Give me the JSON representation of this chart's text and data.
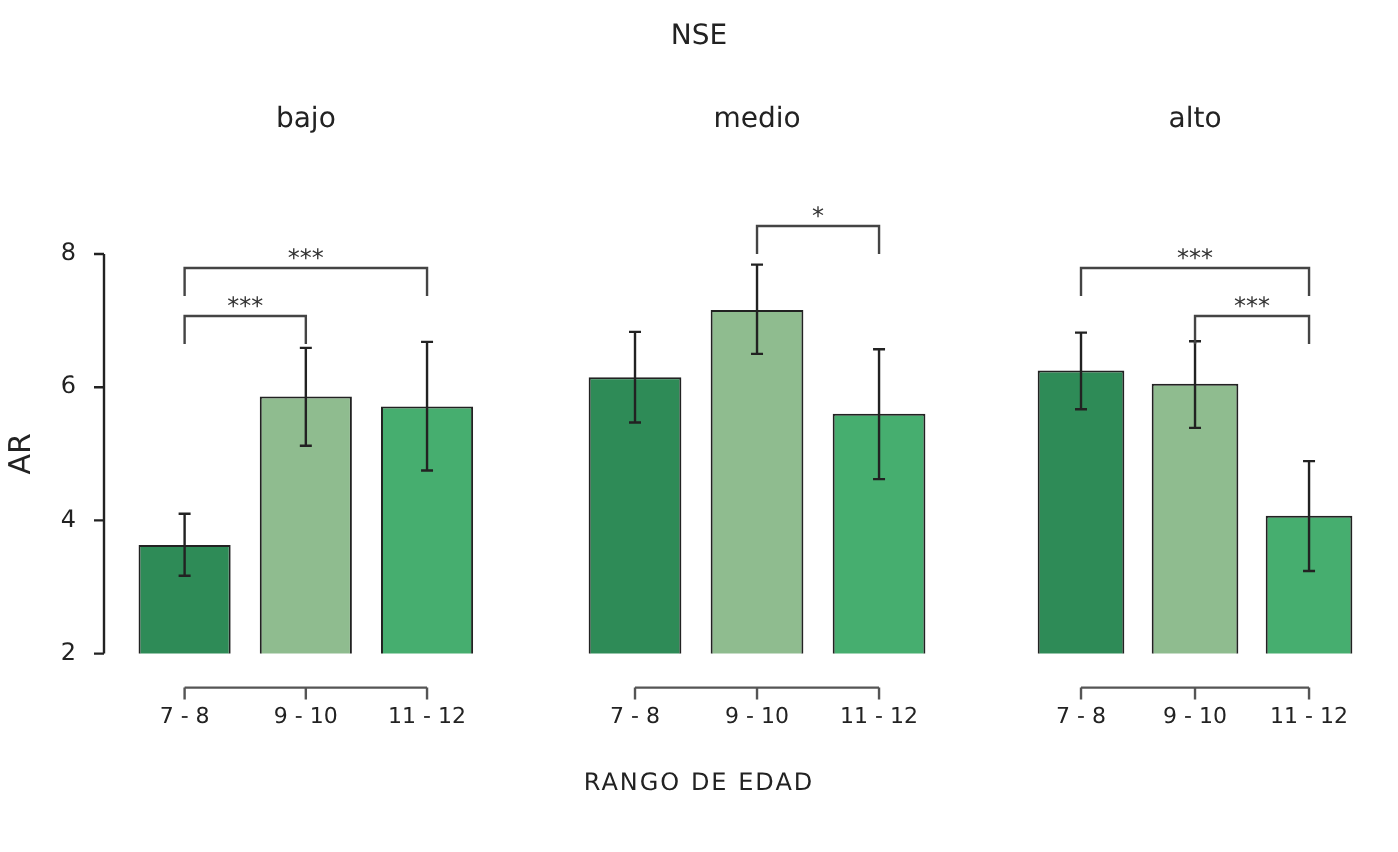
{
  "chart_data": [
    {
      "type": "bar",
      "subtitle": "bajo",
      "ylabel": "AR",
      "categories": [
        "7 - 8",
        "9 - 10",
        "11 - 12"
      ],
      "values": [
        3.63,
        5.86,
        5.71
      ],
      "colors": [
        "#2e8b57",
        "#8fbc8f",
        "#46ae6f"
      ],
      "errors": [
        [
          3.17,
          4.1
        ],
        [
          5.12,
          6.59
        ],
        [
          4.75,
          6.68
        ]
      ],
      "ylim": [
        2,
        8
      ],
      "yticks": [
        2,
        4,
        6,
        8
      ],
      "annotations": [
        "***",
        "***"
      ]
    },
    {
      "type": "bar",
      "title": "NSE",
      "subtitle": "medio",
      "xlabel": "RANGO DE EDAD",
      "categories": [
        "7 - 8",
        "9 - 10",
        "11 - 12"
      ],
      "values": [
        6.15,
        7.16,
        5.6
      ],
      "colors": [
        "#2e8b57",
        "#8fbc8f",
        "#46ae6f"
      ],
      "errors": [
        [
          5.47,
          6.83
        ],
        [
          6.5,
          7.84
        ],
        [
          4.62,
          6.57
        ]
      ],
      "ylim": [
        2,
        8
      ],
      "yticks": [
        2,
        4,
        6,
        8
      ],
      "tick_labels": "x",
      "annotations": [
        "*"
      ]
    },
    {
      "type": "bar",
      "subtitle": "alto",
      "categories": [
        "7 - 8",
        "9 - 10",
        "11 - 12"
      ],
      "values": [
        6.25,
        6.05,
        4.07
      ],
      "colors": [
        "#2e8b57",
        "#8fbc8f",
        "#46ae6f"
      ],
      "errors": [
        [
          5.67,
          6.82
        ],
        [
          5.39,
          6.69
        ],
        [
          3.24,
          4.89
        ]
      ],
      "ylim": [
        2,
        8
      ],
      "yticks": [
        2,
        4,
        6,
        8
      ],
      "tick_labels": "x",
      "annotations": [
        "***",
        "***"
      ]
    }
  ]
}
